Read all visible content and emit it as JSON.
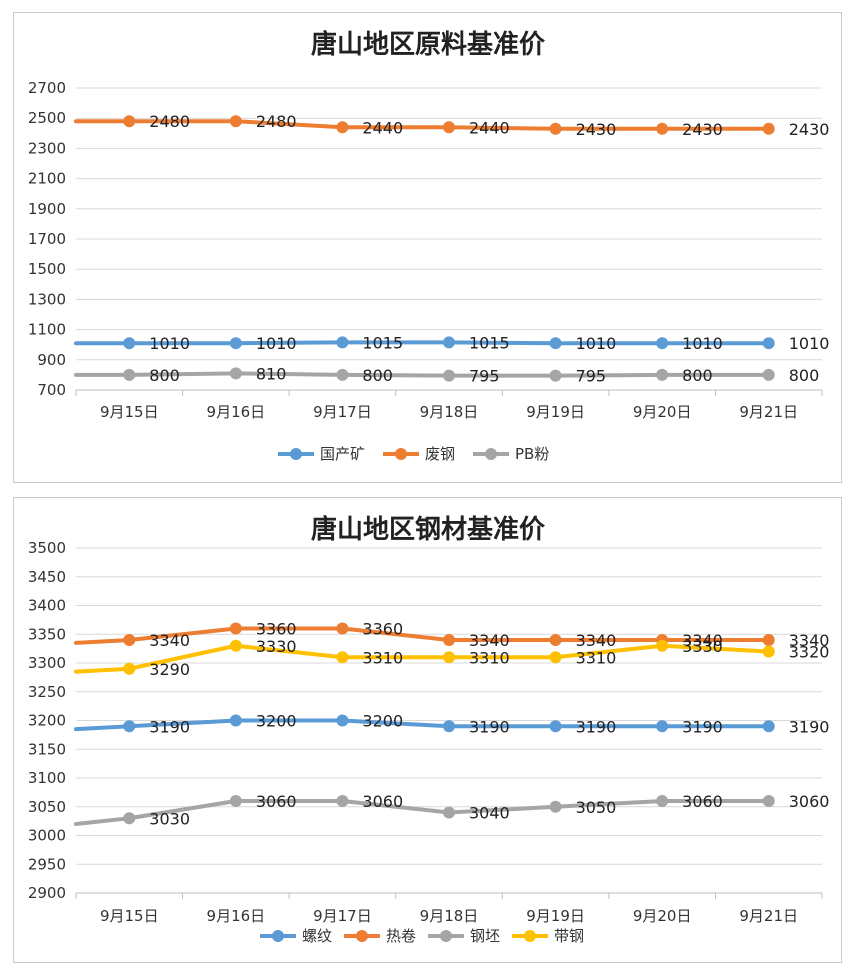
{
  "chart_data": [
    {
      "type": "line",
      "title": "唐山地区原料基准价",
      "categories": [
        "9月15日",
        "9月16日",
        "9月17日",
        "9月18日",
        "9月19日",
        "9月20日",
        "9月21日"
      ],
      "ylim": [
        700,
        2700
      ],
      "yticks": [
        700,
        900,
        1100,
        1300,
        1500,
        1700,
        1900,
        2100,
        2300,
        2500,
        2700
      ],
      "grid": true,
      "legend": "bottom",
      "series": [
        {
          "name": "国产矿",
          "color": "#5b9bd5",
          "values": [
            1010,
            1010,
            1015,
            1015,
            1010,
            1010,
            1010
          ],
          "start_value": 1010
        },
        {
          "name": "废钢",
          "color": "#ed7d31",
          "values": [
            2480,
            2480,
            2440,
            2440,
            2430,
            2430,
            2430
          ],
          "start_value": 2480
        },
        {
          "name": "PB粉",
          "color": "#a5a5a5",
          "values": [
            800,
            810,
            800,
            795,
            795,
            800,
            800
          ],
          "start_value": 800
        }
      ]
    },
    {
      "type": "line",
      "title": "唐山地区钢材基准价",
      "categories": [
        "9月15日",
        "9月16日",
        "9月17日",
        "9月18日",
        "9月19日",
        "9月20日",
        "9月21日"
      ],
      "ylim": [
        2900,
        3500
      ],
      "yticks": [
        2900,
        2950,
        3000,
        3050,
        3100,
        3150,
        3200,
        3250,
        3300,
        3350,
        3400,
        3450,
        3500
      ],
      "grid": true,
      "legend": "bottom",
      "series": [
        {
          "name": "螺纹",
          "color": "#5b9bd5",
          "values": [
            3190,
            3200,
            3200,
            3190,
            3190,
            3190,
            3190
          ],
          "start_value": 3185
        },
        {
          "name": "热卷",
          "color": "#ed7d31",
          "values": [
            3340,
            3360,
            3360,
            3340,
            3340,
            3340,
            3340
          ],
          "start_value": 3335
        },
        {
          "name": "钢坯",
          "color": "#a5a5a5",
          "values": [
            3030,
            3060,
            3060,
            3040,
            3050,
            3060,
            3060
          ],
          "start_value": 3020
        },
        {
          "name": "带钢",
          "color": "#ffc000",
          "values": [
            3290,
            3330,
            3310,
            3310,
            3310,
            3330,
            3320
          ],
          "start_value": 3285
        }
      ]
    }
  ]
}
